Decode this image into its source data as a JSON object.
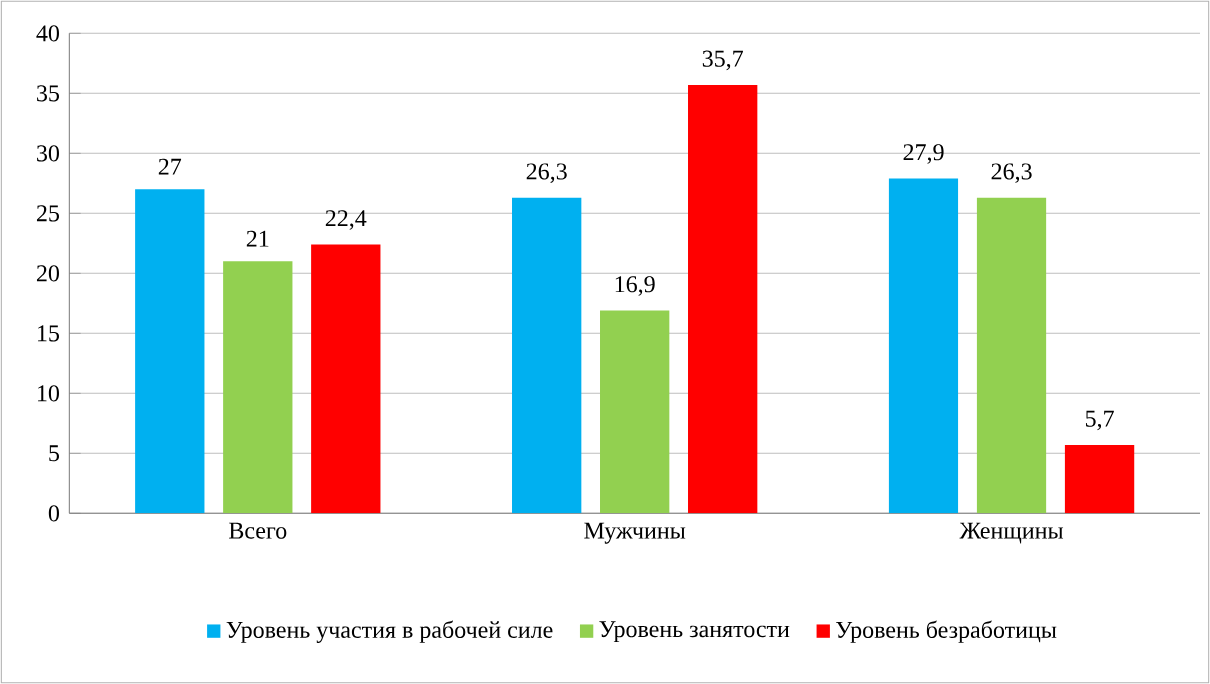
{
  "chart_data": {
    "type": "bar",
    "categories": [
      "Всего",
      "Мужчины",
      "Женщины"
    ],
    "series": [
      {
        "name": "Уровень участия в рабочей силе",
        "color": "#00b0f0",
        "values": [
          27,
          26.3,
          27.9
        ],
        "value_labels": [
          "27",
          "26,3",
          "27,9"
        ]
      },
      {
        "name": "Уровень занятости",
        "color": "#92d050",
        "values": [
          21,
          16.9,
          26.3
        ],
        "value_labels": [
          "21",
          "16,9",
          "26,3"
        ]
      },
      {
        "name": "Уровень безработицы",
        "color": "#ff0000",
        "values": [
          22.4,
          35.7,
          5.7
        ],
        "value_labels": [
          "22,4",
          "35,7",
          "5,7"
        ]
      }
    ],
    "ylim": [
      0,
      40
    ],
    "yticks": [
      0,
      5,
      10,
      15,
      20,
      25,
      30,
      35,
      40
    ],
    "grid": "y",
    "legend": "bottom"
  }
}
